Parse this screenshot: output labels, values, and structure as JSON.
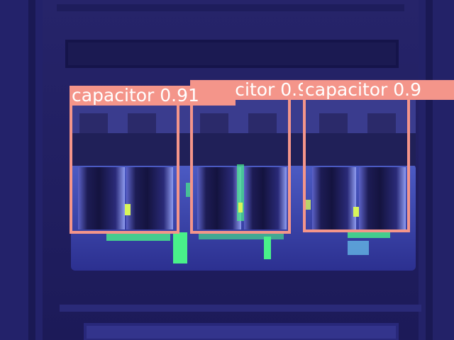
{
  "image": {
    "palette": {
      "background": "#1e1c5c",
      "cabinet_dark": "#15144a",
      "panel": "#3a3f9e",
      "hot_green": "#49f08a",
      "hot_yellow": "#d8f55a",
      "box_color": "#f4958a",
      "label_text": "#ffffff"
    },
    "detections": [
      {
        "label": "capacitor",
        "score": "0.91"
      },
      {
        "label": "capacitor",
        "score": "0.9"
      },
      {
        "label": "capacitor",
        "score": "0.9"
      }
    ]
  }
}
